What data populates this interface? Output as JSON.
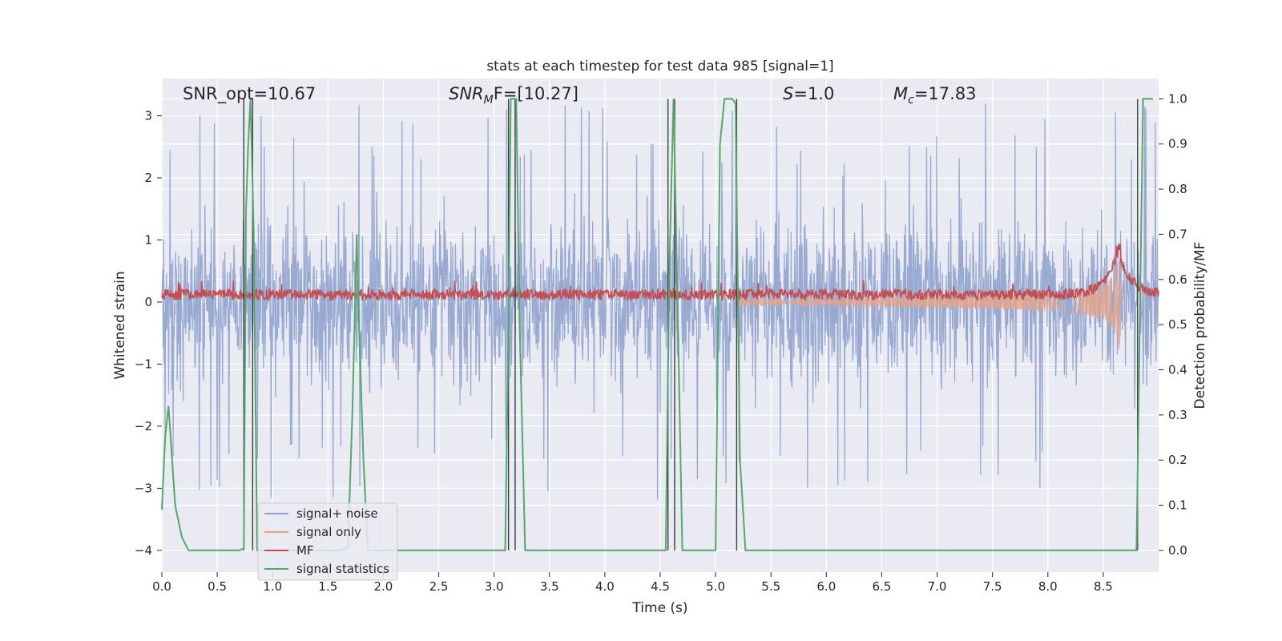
{
  "chart_data": {
    "type": "line",
    "title": "stats at each timestep for test data 985 [signal=1]",
    "xlabel": "Time (s)",
    "ylabel": "Whitened strain",
    "ylabel_right": "Detection probability/MF",
    "xlim": [
      0.0,
      9.0
    ],
    "ylim": [
      -4.35,
      3.6
    ],
    "ylim_right": [
      -0.048,
      1.045
    ],
    "x_ticks": [
      "0.0",
      "0.5",
      "1.0",
      "1.5",
      "2.0",
      "2.5",
      "3.0",
      "3.5",
      "4.0",
      "4.5",
      "5.0",
      "5.5",
      "6.0",
      "6.5",
      "7.0",
      "7.5",
      "8.0",
      "8.5"
    ],
    "y_ticks": [
      "3",
      "2",
      "1",
      "0",
      "−1",
      "−2",
      "−3",
      "−4"
    ],
    "y_ticks_right": [
      "1.0",
      "0.9",
      "0.8",
      "0.7",
      "0.6",
      "0.5",
      "0.4",
      "0.3",
      "0.2",
      "0.1",
      "0.0"
    ],
    "grid": true,
    "legend_position": "lower-left",
    "annotations": {
      "snr_opt": "SNR_opt=10.67",
      "snr_mf_main": "SNR",
      "snr_mf_sub": "M",
      "snr_mf_rest": "F=[10.27]",
      "s_main": "S",
      "s_rest": "=1.0",
      "mc_main": "M",
      "mc_sub": "c",
      "mc_rest": "=17.83"
    },
    "series": [
      {
        "name": "signal+ noise",
        "color": "#8a9fcb",
        "noise_envelope": [
          -2.0,
          2.0
        ],
        "spikes_to": [
          -4.0,
          3.2
        ]
      },
      {
        "name": "signal only",
        "color": "#e3a48a",
        "chirp_peak_time": 8.66,
        "chirp_peak_amplitude": 1.9
      },
      {
        "name": "MF",
        "color": "#c44e52",
        "baseline": 0.12,
        "peak_time": 8.66,
        "peak_value": 1.0
      },
      {
        "name": "signal statistics",
        "color": "#55a868",
        "axis": "right",
        "x": [
          0.0,
          0.03,
          0.06,
          0.12,
          0.18,
          0.24,
          0.3,
          0.5,
          0.7,
          0.74,
          0.76,
          0.78,
          0.8,
          0.83,
          0.86,
          0.88,
          0.92,
          1.2,
          1.4,
          1.5,
          1.6,
          1.68,
          1.72,
          1.74,
          1.76,
          1.78,
          1.82,
          1.86,
          1.9,
          2.5,
          3.1,
          3.13,
          3.15,
          3.2,
          3.23,
          3.28,
          4.0,
          4.55,
          4.58,
          4.6,
          4.62,
          4.66,
          4.7,
          5.0,
          5.04,
          5.08,
          5.15,
          5.18,
          5.22,
          5.27,
          6.0,
          7.0,
          8.0,
          8.5,
          8.8,
          8.83,
          8.86,
          8.9,
          8.95
        ],
        "y": [
          0.09,
          0.25,
          0.32,
          0.1,
          0.03,
          0.0,
          0.0,
          0.0,
          0.0,
          0.005,
          0.75,
          0.9,
          1.0,
          0.7,
          0.0,
          0.0,
          0.0,
          0.0,
          0.0,
          0.0,
          0.0,
          0.005,
          0.3,
          0.5,
          0.7,
          0.5,
          0.2,
          0.0,
          0.0,
          0.0,
          0.0,
          0.5,
          1.0,
          1.0,
          0.5,
          0.0,
          0.0,
          0.0,
          0.6,
          0.8,
          1.0,
          0.5,
          0.0,
          0.0,
          0.9,
          1.0,
          1.0,
          0.99,
          0.2,
          0.0,
          0.0,
          0.0,
          0.0,
          0.0,
          0.0,
          0.5,
          1.0,
          1.0,
          1.0
        ]
      }
    ],
    "vertical_markers": [
      0.74,
      0.82,
      3.13,
      3.19,
      4.57,
      4.63,
      5.19,
      8.81
    ]
  }
}
